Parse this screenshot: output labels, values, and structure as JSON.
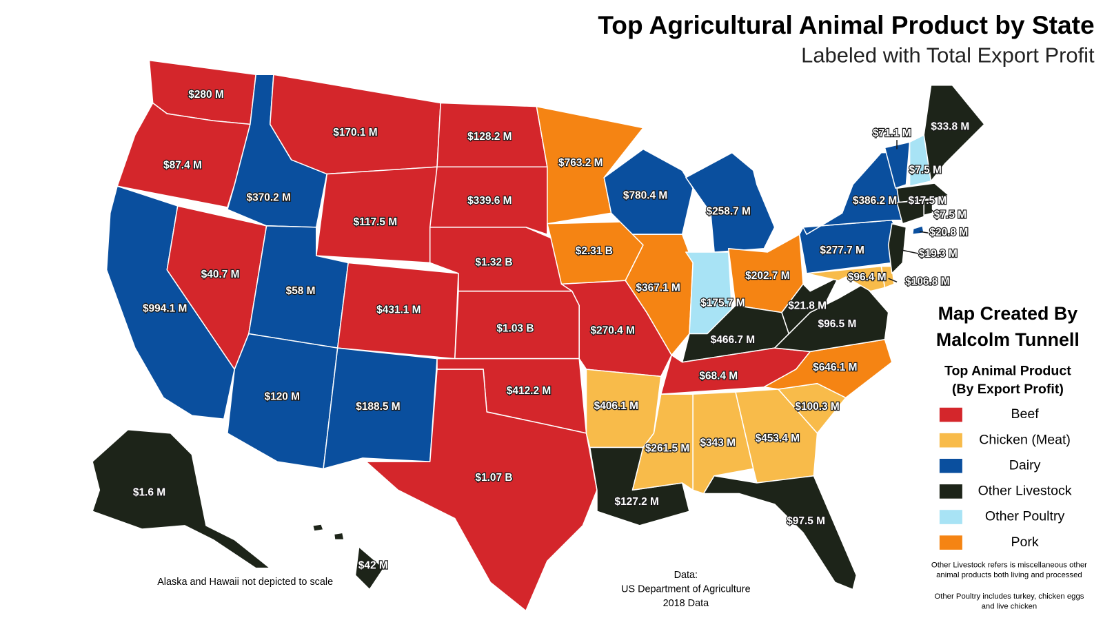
{
  "title": "Top Agricultural Animal Product by State",
  "subtitle": "Labeled with Total Export Profit",
  "credit": [
    "Map Created By",
    "Malcolm Tunnell"
  ],
  "legend": {
    "title": [
      "Top Animal Product",
      "(By Export Profit)"
    ],
    "items": [
      {
        "name": "Beef",
        "color": "#d4262b"
      },
      {
        "name": "Chicken (Meat)",
        "color": "#f8bb4a"
      },
      {
        "name": "Dairy",
        "color": "#0a4f9e"
      },
      {
        "name": "Other Livestock",
        "color": "#1d2419"
      },
      {
        "name": "Other Poultry",
        "color": "#a8e3f5"
      },
      {
        "name": "Pork",
        "color": "#f58413"
      }
    ]
  },
  "notes": [
    [
      "Other Livestock refers is miscellaneous other",
      "animal products both living and processed"
    ],
    [
      "Other Poultry includes turkey, chicken eggs",
      "and live chicken"
    ]
  ],
  "source": [
    "Data:",
    "US Department of Agriculture",
    "2018 Data"
  ],
  "scale_note": "Alaska and Hawaii not depicted to scale",
  "states": [
    {
      "label": "$280 M",
      "product": "Beef"
    },
    {
      "label": "$87.4 M",
      "product": "Beef"
    },
    {
      "label": "$994.1 M",
      "product": "Dairy"
    },
    {
      "label": "$40.7 M",
      "product": "Beef"
    },
    {
      "label": "$370.2 M",
      "product": "Dairy"
    },
    {
      "label": "$170.1 M",
      "product": "Beef"
    },
    {
      "label": "$117.5 M",
      "product": "Beef"
    },
    {
      "label": "$58 M",
      "product": "Dairy"
    },
    {
      "label": "$431.1 M",
      "product": "Beef"
    },
    {
      "label": "$120 M",
      "product": "Dairy"
    },
    {
      "label": "$188.5 M",
      "product": "Dairy"
    },
    {
      "label": "$128.2 M",
      "product": "Beef"
    },
    {
      "label": "$339.6 M",
      "product": "Beef"
    },
    {
      "label": "$1.32 B",
      "product": "Beef"
    },
    {
      "label": "$1.03 B",
      "product": "Beef"
    },
    {
      "label": "$412.2 M",
      "product": "Beef"
    },
    {
      "label": "$1.07 B",
      "product": "Beef"
    },
    {
      "label": "$763.2 M",
      "product": "Pork"
    },
    {
      "label": "$2.31 B",
      "product": "Pork"
    },
    {
      "label": "$270.4 M",
      "product": "Beef"
    },
    {
      "label": "$406.1 M",
      "product": "Chicken (Meat)"
    },
    {
      "label": "$127.2 M",
      "product": "Other Livestock"
    },
    {
      "label": "$780.4 M",
      "product": "Dairy"
    },
    {
      "label": "$367.1 M",
      "product": "Pork"
    },
    {
      "label": "$258.7 M",
      "product": "Dairy"
    },
    {
      "label": "$175.7 M",
      "product": "Other Poultry"
    },
    {
      "label": "$202.7 M",
      "product": "Pork"
    },
    {
      "label": "$466.7 M",
      "product": "Other Livestock"
    },
    {
      "label": "$68.4 M",
      "product": "Beef"
    },
    {
      "label": "$261.5 M",
      "product": "Chicken (Meat)"
    },
    {
      "label": "$343 M",
      "product": "Chicken (Meat)"
    },
    {
      "label": "$453.4 M",
      "product": "Chicken (Meat)"
    },
    {
      "label": "$97.5 M",
      "product": "Other Livestock"
    },
    {
      "label": "$100.3 M",
      "product": "Chicken (Meat)"
    },
    {
      "label": "$646.1 M",
      "product": "Pork"
    },
    {
      "label": "$96.5 M",
      "product": "Other Livestock"
    },
    {
      "label": "$21.8 M",
      "product": "Other Livestock"
    },
    {
      "label": "$277.7 M",
      "product": "Dairy"
    },
    {
      "label": "$386.2 M",
      "product": "Dairy"
    },
    {
      "label": "$96.4 M",
      "product": "Chicken (Meat)"
    },
    {
      "label": "$106.8 M",
      "product": "Chicken (Meat)"
    },
    {
      "label": "$19.3 M",
      "product": "Other Livestock"
    },
    {
      "label": "$71.1 M",
      "product": "Dairy"
    },
    {
      "label": "$7.5 M",
      "product": "Other Poultry"
    },
    {
      "label": "$33.8 M",
      "product": "Other Livestock"
    },
    {
      "label": "$17.5 M",
      "product": "Other Livestock"
    },
    {
      "label": "$7.5 M",
      "product": "Other Livestock"
    },
    {
      "label": "$20.8 M",
      "product": "Dairy"
    },
    {
      "label": "$1.6 M",
      "product": "Other Livestock"
    },
    {
      "label": "$42 M",
      "product": "Other Livestock"
    }
  ]
}
